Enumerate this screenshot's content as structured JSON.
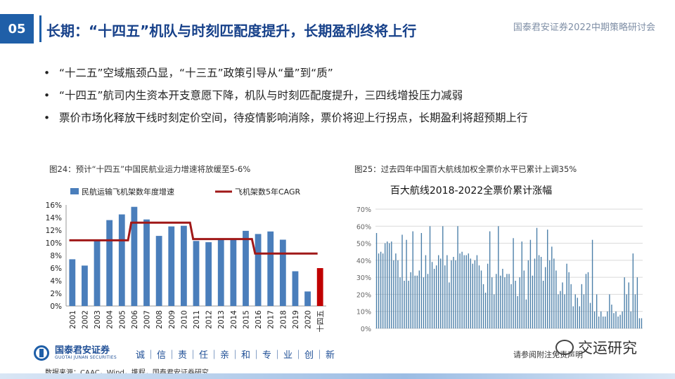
{
  "header": {
    "slide_number": "05",
    "title": "长期：“十四五”机队与时刻匹配度提升，长期盈利终将上行",
    "org": "国泰君安证券2022中期策略研讨会"
  },
  "bullets": [
    "“十二五”空域瓶颈凸显，“十三五”政策引导从“量”到“质”",
    "“十四五”航司内生资本开支意愿下降，机队与时刻匹配度提升，三四线增投压力减弱",
    "票价市场化释放干线时刻定价空间，待疫情影响消除，票价将迎上行拐点，长期盈利将超预期上行"
  ],
  "figures": {
    "fig24_caption": "图24：预计“十四五”中国民航业运力增速将放缓至5-6%",
    "fig25_caption": "图25：过去四年中国百大航线加权全票价水平已累计上调35%"
  },
  "footer": {
    "logo_text": "国泰君安证券",
    "logo_sub": "GUOTAI JUNAN SECURITIES",
    "motto": "诚｜信｜责｜任｜亲｜和｜专｜业｜创｜新",
    "source": "数据来源：CAAC，Wind，携程，国泰君安证券研究",
    "ref_note": "请参阅附注免责声明",
    "watermark": "交运研究"
  },
  "colors": {
    "bar": "#4a7ebb",
    "bar_highlight": "#c00000",
    "cagr_line": "#a01818",
    "bar2": "#4a7ea8",
    "brand": "#1f5fa8"
  },
  "chart_data": [
    {
      "type": "bar",
      "categories": [
        "2001",
        "2002",
        "2003",
        "2004",
        "2005",
        "2006",
        "2007",
        "2008",
        "2009",
        "2010",
        "2011",
        "2012",
        "2013",
        "2014",
        "2015",
        "2016",
        "2017",
        "2018",
        "2019",
        "2020",
        "十四五"
      ],
      "series": [
        {
          "name": "民航运输飞机架数年度增速",
          "type": "bar",
          "values": [
            7.4,
            6.4,
            10.3,
            13.6,
            14.5,
            15.7,
            13.7,
            11.1,
            12.6,
            12.7,
            10.3,
            10.1,
            10.7,
            10.5,
            11.9,
            11.4,
            11.8,
            10.5,
            5.5,
            2.3,
            6.0
          ]
        },
        {
          "name": "飞机架数5年CAGR",
          "type": "line",
          "values": [
            10.4,
            10.4,
            10.4,
            10.4,
            10.4,
            13.2,
            13.2,
            13.2,
            13.2,
            13.2,
            10.6,
            10.6,
            10.6,
            10.6,
            10.6,
            8.3,
            8.3,
            8.3,
            8.3,
            8.3,
            null
          ]
        }
      ],
      "ylim": [
        0,
        16
      ],
      "yticks": [
        "0%",
        "2%",
        "4%",
        "6%",
        "8%",
        "10%",
        "12%",
        "14%",
        "16%"
      ],
      "legend": "top"
    },
    {
      "type": "bar",
      "title": "百大航线2018-2022全票价累计涨幅",
      "ylim": [
        0,
        70
      ],
      "yticks": [
        "0%",
        "10%",
        "20%",
        "30%",
        "40%",
        "50%",
        "60%",
        "70%"
      ],
      "grid": true,
      "values": [
        56,
        44,
        45,
        44,
        50,
        51,
        50,
        51,
        40,
        44,
        40,
        30,
        55,
        28,
        52,
        28,
        33,
        57,
        31,
        31,
        34,
        56,
        30,
        43,
        32,
        60,
        39,
        35,
        37,
        43,
        41,
        60,
        37,
        43,
        27,
        40,
        42,
        40,
        60,
        44,
        45,
        43,
        43,
        44,
        41,
        38,
        40,
        43,
        37,
        34,
        26,
        21,
        38,
        57,
        30,
        20,
        32,
        60,
        31,
        35,
        30,
        32,
        32,
        26,
        53,
        28,
        19,
        30,
        51,
        34,
        17,
        40,
        52,
        31,
        41,
        59,
        43,
        42,
        28,
        36,
        58,
        40,
        48,
        41,
        34,
        20,
        22,
        27,
        20,
        38,
        33,
        26,
        13,
        20,
        18,
        13,
        26,
        20,
        32,
        33,
        15,
        52,
        10,
        20,
        7,
        10,
        7,
        7,
        10,
        20,
        14,
        9,
        10,
        7,
        8,
        10,
        30,
        20,
        27,
        10,
        44,
        20,
        30,
        6,
        6
      ]
    }
  ]
}
